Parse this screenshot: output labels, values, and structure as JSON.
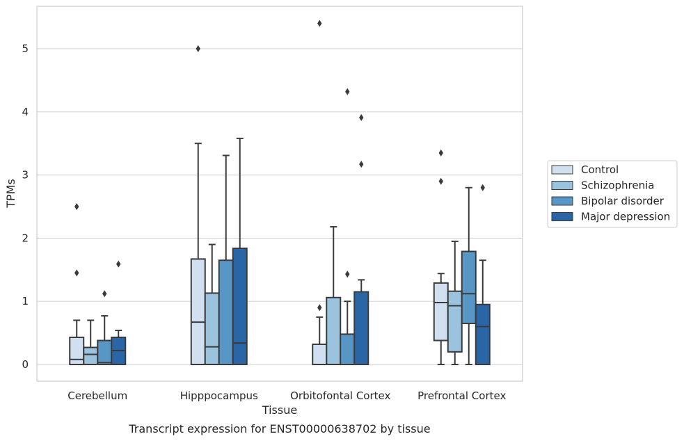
{
  "chart_data": {
    "type": "box",
    "caption": "Transcript expression for ENST00000638702 by tissue",
    "xlabel": "Tissue",
    "ylabel": "TPMs",
    "ylim": [
      -0.27,
      5.67
    ],
    "yticks": [
      0,
      1,
      2,
      3,
      4,
      5
    ],
    "grid": "horizontal",
    "legend_position": "right",
    "categories": [
      "Cerebellum",
      "Hipppocampus",
      "Orbitofontal Cortex",
      "Prefrontal Cortex"
    ],
    "series": [
      {
        "name": "Control",
        "color": "#d0e0f0",
        "boxes": [
          {
            "whisker_low": 0,
            "q1": 0,
            "median": 0.08,
            "q3": 0.43,
            "whisker_high": 0.7,
            "outliers": [
              1.45,
              2.5
            ]
          },
          {
            "whisker_low": 0,
            "q1": 0,
            "median": 0.67,
            "q3": 1.67,
            "whisker_high": 3.5,
            "outliers": [
              5.0
            ]
          },
          {
            "whisker_low": 0,
            "q1": 0,
            "median": 0,
            "q3": 0.32,
            "whisker_high": 0.75,
            "outliers": [
              0.9,
              5.4
            ]
          },
          {
            "whisker_low": 0,
            "q1": 0.38,
            "median": 0.98,
            "q3": 1.29,
            "whisker_high": 1.44,
            "outliers": [
              2.9,
              3.35
            ]
          }
        ]
      },
      {
        "name": "Schizophrenia",
        "color": "#9bc3de",
        "boxes": [
          {
            "whisker_low": 0,
            "q1": 0,
            "median": 0.16,
            "q3": 0.27,
            "whisker_high": 0.7,
            "outliers": []
          },
          {
            "whisker_low": 0,
            "q1": 0,
            "median": 0.28,
            "q3": 1.13,
            "whisker_high": 1.9,
            "outliers": []
          },
          {
            "whisker_low": 0,
            "q1": 0,
            "median": 0,
            "q3": 1.06,
            "whisker_high": 2.18,
            "outliers": []
          },
          {
            "whisker_low": 0,
            "q1": 0.2,
            "median": 0.93,
            "q3": 1.16,
            "whisker_high": 1.95,
            "outliers": []
          }
        ]
      },
      {
        "name": "Bipolar disorder",
        "color": "#5897c5",
        "boxes": [
          {
            "whisker_low": 0,
            "q1": 0,
            "median": 0.03,
            "q3": 0.38,
            "whisker_high": 0.77,
            "outliers": [
              1.12
            ]
          },
          {
            "whisker_low": 0,
            "q1": 0,
            "median": 0,
            "q3": 1.65,
            "whisker_high": 3.31,
            "outliers": []
          },
          {
            "whisker_low": 0,
            "q1": 0,
            "median": 0,
            "q3": 0.48,
            "whisker_high": 1.0,
            "outliers": [
              1.43,
              4.32
            ]
          },
          {
            "whisker_low": 0,
            "q1": 0.65,
            "median": 1.12,
            "q3": 1.79,
            "whisker_high": 2.8,
            "outliers": []
          }
        ]
      },
      {
        "name": "Major depression",
        "color": "#2a66a6",
        "boxes": [
          {
            "whisker_low": 0,
            "q1": 0,
            "median": 0.22,
            "q3": 0.43,
            "whisker_high": 0.54,
            "outliers": [
              1.59
            ]
          },
          {
            "whisker_low": 0,
            "q1": 0,
            "median": 0.34,
            "q3": 1.84,
            "whisker_high": 3.58,
            "outliers": []
          },
          {
            "whisker_low": 0,
            "q1": 0,
            "median": 0,
            "q3": 1.15,
            "whisker_high": 1.34,
            "outliers": [
              3.17,
              3.91
            ]
          },
          {
            "whisker_low": 0,
            "q1": 0,
            "median": 0.6,
            "q3": 0.95,
            "whisker_high": 1.65,
            "outliers": [
              2.8
            ]
          }
        ]
      }
    ]
  }
}
